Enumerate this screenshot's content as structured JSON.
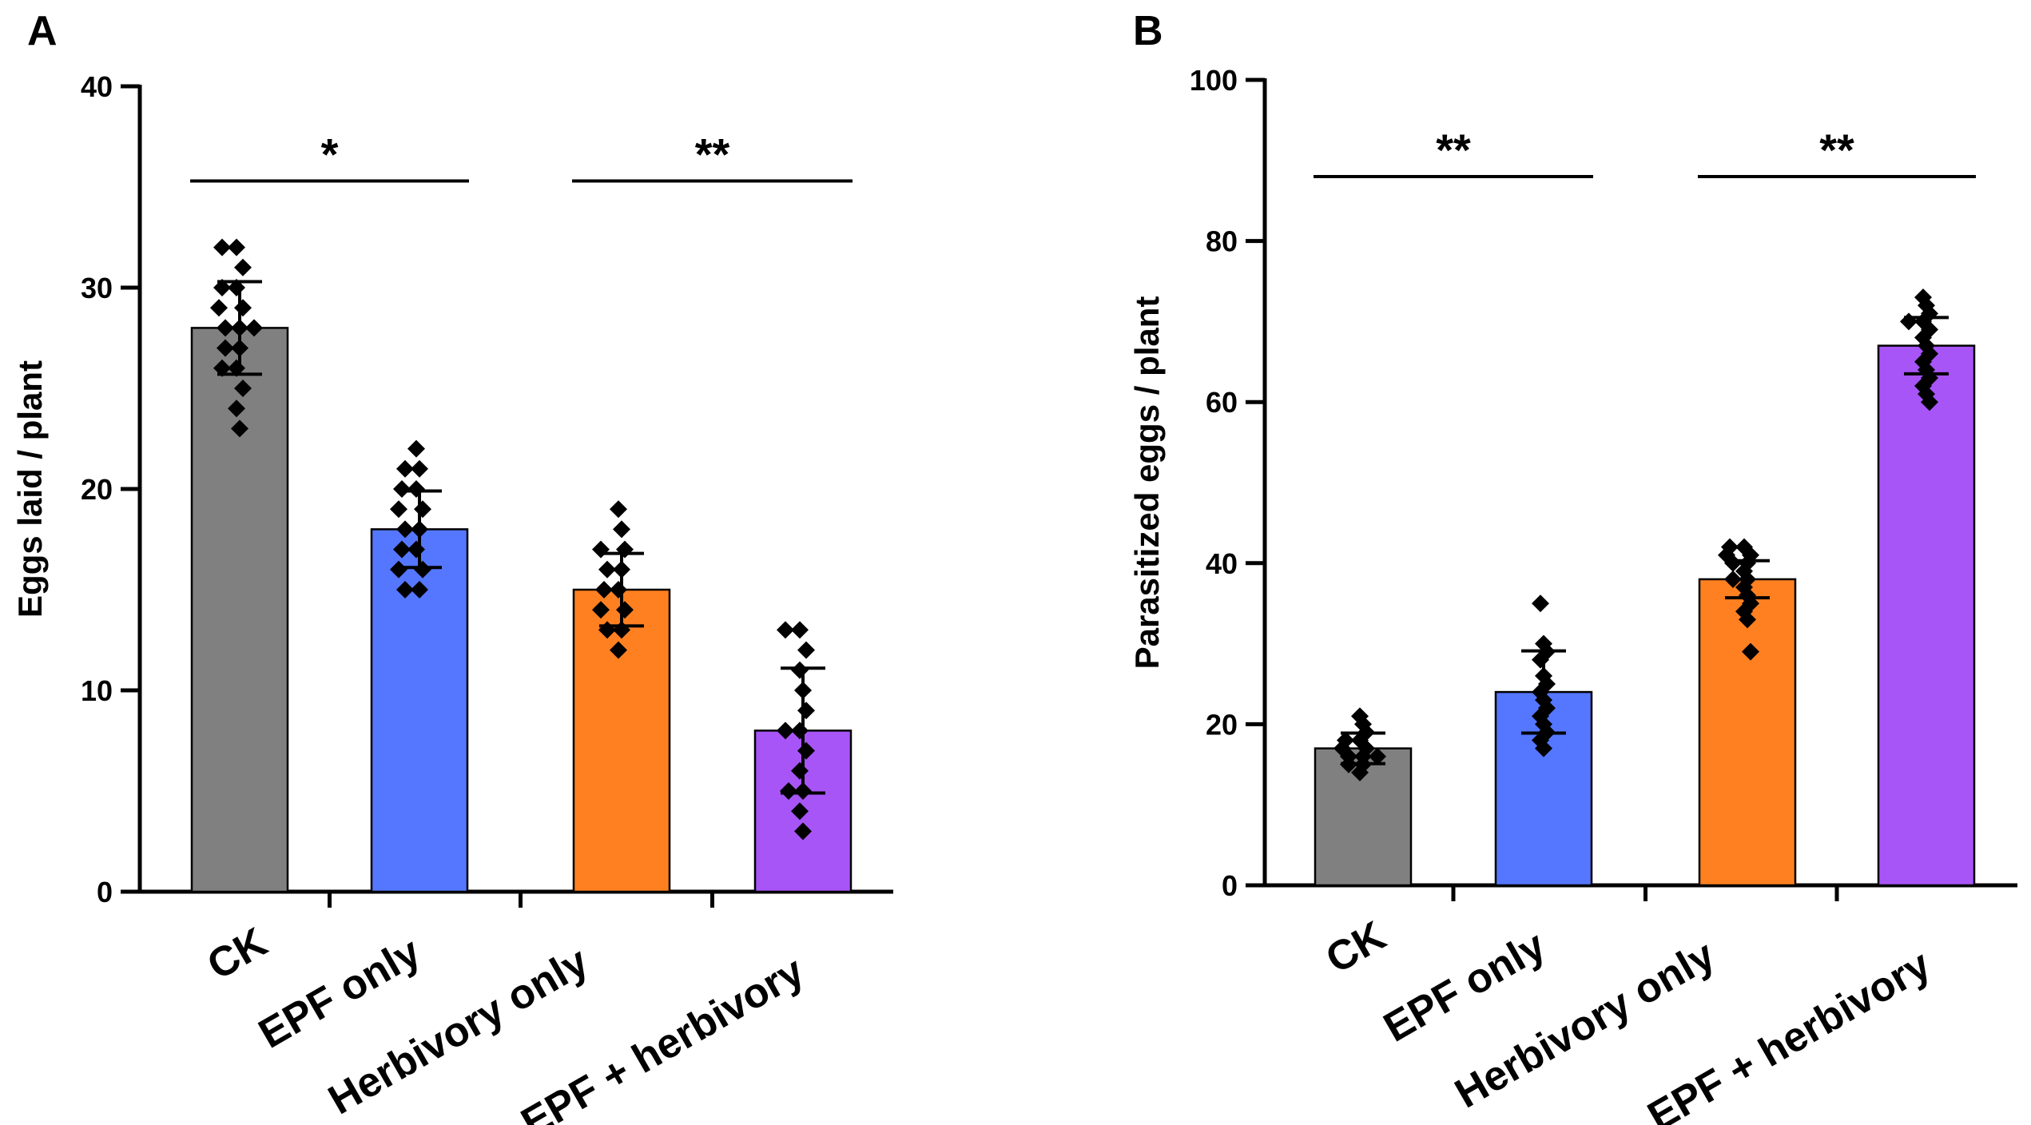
{
  "chart_data": [
    {
      "panel": "A",
      "type": "bar",
      "categories": [
        "CK",
        "EPF only",
        "Herbivory only",
        "EPF + herbivory"
      ],
      "values": [
        28,
        18,
        15,
        8
      ],
      "errors": [
        2.3,
        1.9,
        1.8,
        3.1
      ],
      "colors": [
        "#808080",
        "#5577FF",
        "#FF8020",
        "#A855F7"
      ],
      "points": [
        [
          32,
          32,
          31,
          30,
          30,
          29,
          29,
          28,
          28,
          28,
          27,
          27,
          26,
          26,
          25,
          24,
          23
        ],
        [
          22,
          21,
          21,
          20,
          20,
          19,
          19,
          18,
          18,
          17,
          17,
          16,
          16,
          15,
          15
        ],
        [
          19,
          18,
          17,
          17,
          16,
          16,
          15,
          15,
          14,
          14,
          13,
          13,
          12
        ],
        [
          13,
          13,
          12,
          11,
          10,
          9,
          8,
          8,
          7,
          6,
          5,
          5,
          4,
          3
        ]
      ],
      "ylabel": "Eggs laid / plant",
      "ylim": [
        0,
        40
      ],
      "yticks": [
        "0",
        "10",
        "20",
        "30",
        "40"
      ],
      "significance": [
        {
          "from": 0,
          "to": 1,
          "label": "*",
          "y": 35.3
        },
        {
          "from": 2,
          "to": 3,
          "label": "**",
          "y": 35.3
        }
      ]
    },
    {
      "panel": "B",
      "type": "bar",
      "categories": [
        "CK",
        "EPF only",
        "Herbivory only",
        "EPF + herbivory"
      ],
      "values": [
        17,
        24,
        38,
        67
      ],
      "errors": [
        1.9,
        5.1,
        2.3,
        3.5
      ],
      "colors": [
        "#808080",
        "#5577FF",
        "#FF8020",
        "#A855F7"
      ],
      "points": [
        [
          21,
          20,
          19,
          18,
          18,
          17,
          17,
          16,
          16,
          16,
          15,
          15,
          14
        ],
        [
          35,
          30,
          29,
          28,
          26,
          25,
          24,
          23,
          22,
          21,
          20,
          19,
          18,
          17
        ],
        [
          42,
          42,
          41,
          41,
          40,
          40,
          39,
          38,
          38,
          37,
          36,
          35,
          34,
          33,
          29
        ],
        [
          73,
          72,
          71,
          70,
          70,
          69,
          68,
          67,
          66,
          65,
          64,
          63,
          62,
          61,
          60
        ]
      ],
      "ylabel": "Parasitized eggs / plant",
      "ylim": [
        0,
        100
      ],
      "yticks": [
        "0",
        "20",
        "40",
        "60",
        "80",
        "100"
      ],
      "significance": [
        {
          "from": 0,
          "to": 1,
          "label": "**",
          "y": 88
        },
        {
          "from": 2,
          "to": 3,
          "label": "**",
          "y": 88
        }
      ]
    }
  ]
}
